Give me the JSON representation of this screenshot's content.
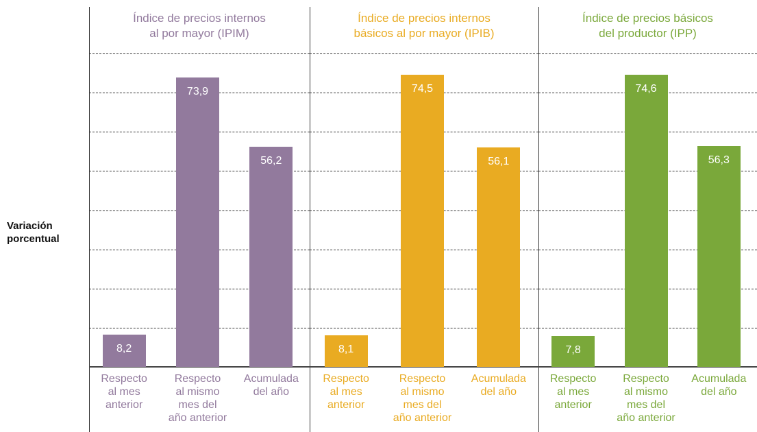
{
  "chart_data": [
    {
      "type": "bar",
      "title": "Índice de precios internos\nal por mayor (IPIM)",
      "ylabel": "Variación\nporcentual",
      "categories": [
        "Respecto\nal mes\nanterior",
        "Respecto\nal mismo\nmes del\naño anterior",
        "Acumulada\ndel año"
      ],
      "values": [
        8.2,
        73.9,
        56.2
      ],
      "value_labels": [
        "8,2",
        "73,9",
        "56,2"
      ],
      "color": "#927a9d",
      "ylim": [
        0,
        80
      ],
      "yticks": [
        0,
        10,
        20,
        30,
        40,
        50,
        60,
        70,
        80
      ],
      "grid": true
    },
    {
      "type": "bar",
      "title": "Índice de precios internos\nbásicos al por mayor (IPIB)",
      "categories": [
        "Respecto\nal mes\nanterior",
        "Respecto\nal mismo\nmes del\naño anterior",
        "Acumulada\ndel año"
      ],
      "values": [
        8.1,
        74.5,
        56.1
      ],
      "value_labels": [
        "8,1",
        "74,5",
        "56,1"
      ],
      "color": "#e9ab22",
      "ylim": [
        0,
        80
      ],
      "yticks": [
        0,
        10,
        20,
        30,
        40,
        50,
        60,
        70,
        80
      ],
      "grid": true
    },
    {
      "type": "bar",
      "title": "Índice de precios básicos\ndel productor (IPP)",
      "categories": [
        "Respecto\nal mes\nanterior",
        "Respecto\nal mismo\nmes del\naño anterior",
        "Acumulada\ndel año"
      ],
      "values": [
        7.8,
        74.6,
        56.3
      ],
      "value_labels": [
        "7,8",
        "74,6",
        "56,3"
      ],
      "color": "#7aa83a",
      "ylim": [
        0,
        80
      ],
      "yticks": [
        0,
        10,
        20,
        30,
        40,
        50,
        60,
        70,
        80
      ],
      "grid": true
    }
  ]
}
